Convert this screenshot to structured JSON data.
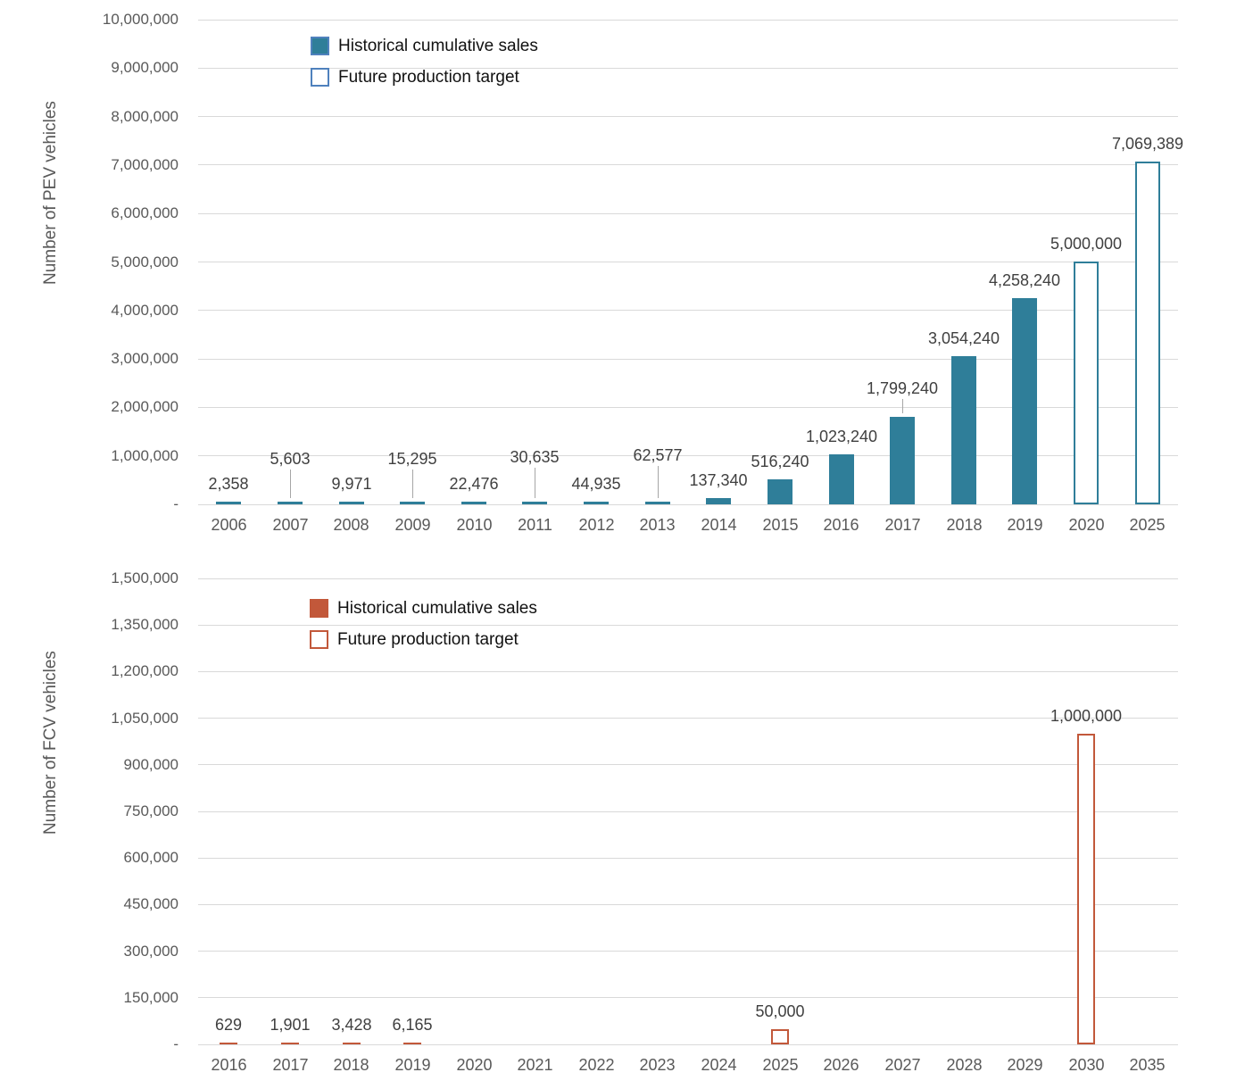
{
  "chart_data": [
    {
      "type": "bar",
      "title": "",
      "ylabel": "Number of PEV vehicles",
      "xlabel": "",
      "ylim": [
        0,
        10000000
      ],
      "ytick_labels": [
        "10,000,000",
        "9,000,000",
        "8,000,000",
        "7,000,000",
        "6,000,000",
        "5,000,000",
        "4,000,000",
        "3,000,000",
        "2,000,000",
        "1,000,000",
        "-"
      ],
      "grid": true,
      "legend_position": "top-left-inside",
      "series": [
        {
          "name": "Historical cumulative sales",
          "style": "filled"
        },
        {
          "name": "Future production target",
          "style": "outline"
        }
      ],
      "categories": [
        "2006",
        "2007",
        "2008",
        "2009",
        "2010",
        "2011",
        "2012",
        "2013",
        "2014",
        "2015",
        "2016",
        "2017",
        "2018",
        "2019",
        "2020",
        "2025"
      ],
      "values": [
        2358,
        5603,
        9971,
        15295,
        22476,
        30635,
        44935,
        62577,
        137340,
        516240,
        1023240,
        1799240,
        3054240,
        4258240,
        5000000,
        7069389
      ],
      "value_labels": [
        "2,358",
        "5,603",
        "9,971",
        "15,295",
        "22,476",
        "30,635",
        "44,935",
        "62,577",
        "137,340",
        "516,240",
        "1,023,240",
        "1,799,240",
        "3,054,240",
        "4,258,240",
        "5,000,000",
        "7,069,389"
      ],
      "future_mask": [
        false,
        false,
        false,
        false,
        false,
        false,
        false,
        false,
        false,
        false,
        false,
        false,
        false,
        false,
        true,
        true
      ],
      "label_raise": [
        0,
        28,
        0,
        28,
        0,
        30,
        0,
        32,
        0,
        0,
        0,
        12,
        0,
        0,
        0,
        0
      ],
      "colors": {
        "fill": "#2f7e99",
        "outline": "#2f7e99",
        "legend_border": "#4f81bd"
      }
    },
    {
      "type": "bar",
      "title": "",
      "ylabel": "Number of FCV vehicles",
      "xlabel": "",
      "ylim": [
        0,
        1500000
      ],
      "ytick_labels": [
        "1,500,000",
        "1,350,000",
        "1,200,000",
        "1,050,000",
        "900,000",
        "750,000",
        "600,000",
        "450,000",
        "300,000",
        "150,000",
        "-"
      ],
      "grid": true,
      "legend_position": "top-left-inside",
      "series": [
        {
          "name": "Historical cumulative sales",
          "style": "filled"
        },
        {
          "name": "Future production target",
          "style": "outline"
        }
      ],
      "categories": [
        "2016",
        "2017",
        "2018",
        "2019",
        "2020",
        "2021",
        "2022",
        "2023",
        "2024",
        "2025",
        "2026",
        "2027",
        "2028",
        "2029",
        "2030",
        "2035"
      ],
      "values": [
        629,
        1901,
        3428,
        6165,
        null,
        null,
        null,
        null,
        null,
        50000,
        null,
        null,
        null,
        null,
        1000000,
        null
      ],
      "value_labels": [
        "629",
        "1,901",
        "3,428",
        "6,165",
        "",
        "",
        "",
        "",
        "",
        "50,000",
        "",
        "",
        "",
        "",
        "1,000,000",
        ""
      ],
      "future_mask": [
        false,
        false,
        false,
        false,
        false,
        false,
        false,
        false,
        false,
        true,
        false,
        false,
        false,
        false,
        true,
        false
      ],
      "label_raise": [
        0,
        0,
        0,
        0,
        0,
        0,
        0,
        0,
        0,
        0,
        0,
        0,
        0,
        0,
        0,
        0
      ],
      "colors": {
        "fill": "#c2583a",
        "outline": "#c2583a",
        "legend_border": "#c2583a"
      }
    }
  ]
}
